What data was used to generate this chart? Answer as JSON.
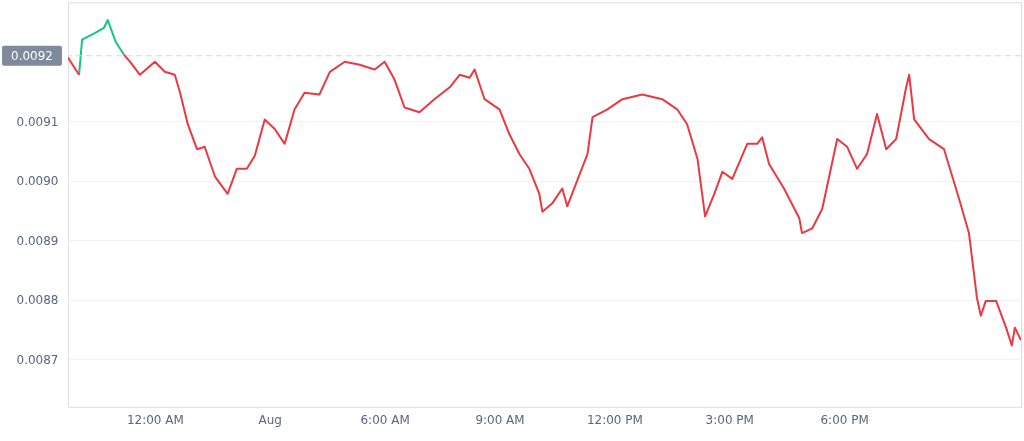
{
  "chart_data": {
    "type": "line",
    "xlim": [
      -2.27,
      22.62
    ],
    "ylim": [
      0.00862,
      0.0093
    ],
    "xticks": [
      {
        "value": 0,
        "label": "12:00 AM"
      },
      {
        "value": 3,
        "label": "Aug"
      },
      {
        "value": 6,
        "label": "6:00 AM"
      },
      {
        "value": 9,
        "label": "9:00 AM"
      },
      {
        "value": 12,
        "label": "12:00 PM"
      },
      {
        "value": 15,
        "label": "3:00 PM"
      },
      {
        "value": 18,
        "label": "6:00 PM"
      }
    ],
    "yticks": [
      0.0087,
      0.0088,
      0.0089,
      {
        "value": 0.009,
        "label": "0.0090"
      },
      0.0091
    ],
    "grid": "y",
    "line_style": "solid",
    "ref_lines": [
      {
        "axis": "y",
        "value": 0.00921,
        "label": "0.0092",
        "color": "#cfd6e4",
        "line_style": "dashed"
      }
    ],
    "series": [
      {
        "color": "#16c784",
        "x": [
          -1.98,
          -1.9,
          -1.57,
          -1.33,
          -1.23,
          -1.02,
          -0.81
        ],
        "values": [
          0.009178,
          0.009237,
          0.009248,
          0.009257,
          0.00927,
          0.009233,
          0.009212
        ]
      },
      {
        "color": "#ea3943",
        "x": [
          -2.27,
          -1.98,
          -1.5,
          -0.81,
          -0.65,
          -0.39,
          0,
          0.26,
          0.52,
          0.65,
          0.86,
          1.1,
          1.3,
          1.57,
          1.9,
          2.14,
          2.4,
          2.61,
          2.87,
          3.13,
          3.39,
          3.65,
          3.91,
          4.3,
          4.57,
          4.96,
          5.35,
          5.74,
          6.0,
          6.26,
          6.52,
          6.91,
          7.3,
          7.7,
          7.96,
          8.22,
          8.35,
          8.61,
          9.0,
          9.26,
          9.52,
          9.78,
          10.04,
          10.12,
          10.38,
          10.64,
          10.77,
          11.03,
          11.3,
          11.43,
          11.82,
          12.21,
          12.73,
          13.25,
          13.64,
          13.9,
          14.17,
          14.37,
          14.61,
          14.82,
          15.08,
          15.47,
          15.73,
          15.86,
          16.04,
          16.43,
          16.83,
          16.9,
          17.17,
          17.43,
          17.82,
          18.08,
          18.34,
          18.6,
          18.86,
          19.1,
          19.36,
          19.62,
          19.7,
          19.83,
          20.22,
          20.61,
          21.0,
          21.26,
          21.47,
          21.57,
          21.7,
          21.97,
          22.23,
          22.38,
          22.46,
          22.62
        ],
        "values": [
          0.009207,
          0.009178,
          null,
          0.009212,
          0.0092,
          0.009178,
          0.0092,
          0.009183,
          0.009178,
          0.00915,
          0.009095,
          0.009053,
          0.009057,
          0.009007,
          0.008978,
          0.00902,
          0.00902,
          0.009042,
          0.009103,
          0.009087,
          0.009062,
          0.00912,
          0.009148,
          0.009145,
          0.009183,
          0.0092,
          0.009195,
          0.009187,
          0.0092,
          0.00917,
          0.009123,
          0.009115,
          0.009137,
          0.009157,
          0.009178,
          0.009173,
          0.009187,
          0.009137,
          0.00912,
          0.009078,
          0.009045,
          0.00902,
          0.008978,
          0.008948,
          0.008962,
          0.008987,
          0.008957,
          0.009,
          0.009045,
          0.009107,
          0.00912,
          0.009137,
          0.009145,
          0.009137,
          0.00912,
          0.009095,
          0.009037,
          0.00894,
          0.008978,
          0.009015,
          0.009003,
          0.009062,
          0.009062,
          0.009073,
          0.009028,
          0.008987,
          0.008937,
          0.008912,
          0.00892,
          0.008953,
          0.00907,
          0.009057,
          0.00902,
          0.009045,
          0.009112,
          0.009053,
          0.00907,
          0.009157,
          0.009178,
          0.009103,
          0.00907,
          0.009053,
          0.00897,
          0.008912,
          0.008803,
          0.008773,
          0.008798,
          0.008798,
          0.008753,
          0.008723,
          0.008753,
          0.008732
        ]
      }
    ]
  }
}
